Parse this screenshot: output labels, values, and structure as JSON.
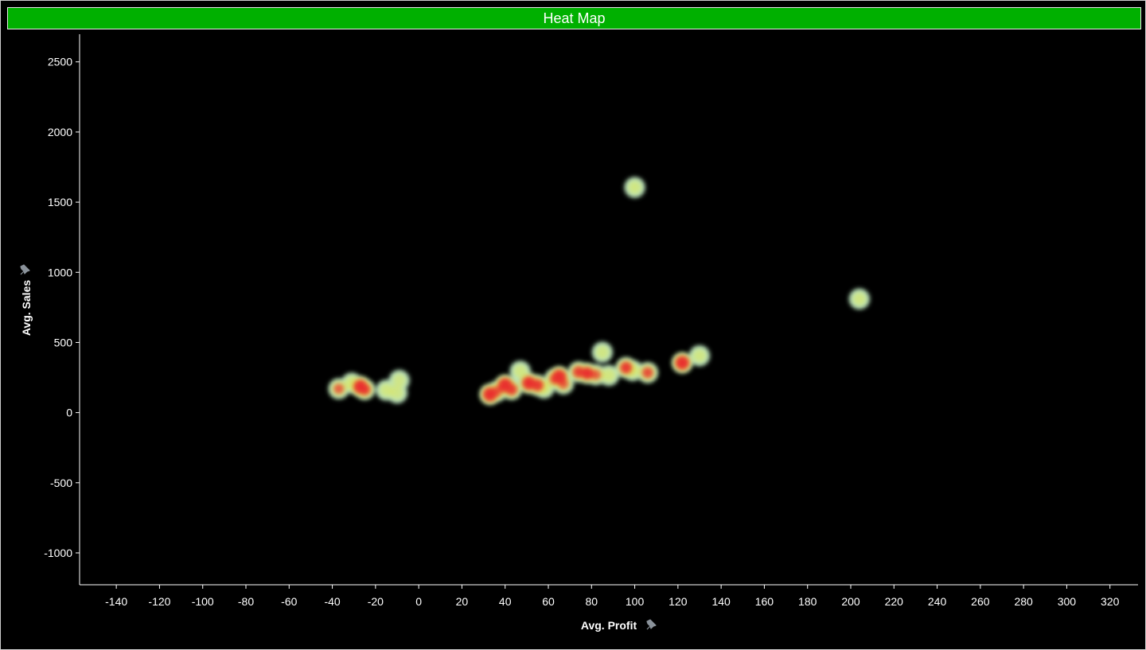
{
  "title": "Heat Map",
  "colors": {
    "title_bar": "#00b000",
    "background": "#000000",
    "axis": "#ffffff",
    "heat_low": "#b7e3c8",
    "heat_mid": "#e6e84a",
    "heat_high": "#e8322e",
    "pin_icon": "#8a929a"
  },
  "icons": {
    "x_axis_pin": "pin-icon",
    "y_axis_pin": "pin-icon"
  },
  "chart_data": {
    "type": "heatmap",
    "title": "Heat Map",
    "xlabel": "Avg. Profit",
    "ylabel": "Avg. Sales",
    "xlim": [
      -157,
      333
    ],
    "ylim": [
      -1227,
      2697
    ],
    "x_ticks": [
      -140,
      -120,
      -100,
      -80,
      -60,
      -40,
      -20,
      0,
      20,
      40,
      60,
      80,
      100,
      120,
      140,
      160,
      180,
      200,
      220,
      240,
      260,
      280,
      300,
      320
    ],
    "y_ticks": [
      2500,
      2000,
      1500,
      1000,
      500,
      0,
      -500,
      -1000
    ],
    "grid": false,
    "points": [
      {
        "x": -37,
        "y": 170,
        "intensity": 0.55
      },
      {
        "x": -31,
        "y": 210,
        "intensity": 0.45
      },
      {
        "x": -27,
        "y": 185,
        "intensity": 0.95
      },
      {
        "x": -25,
        "y": 165,
        "intensity": 0.7
      },
      {
        "x": -15,
        "y": 160,
        "intensity": 0.35
      },
      {
        "x": -10,
        "y": 140,
        "intensity": 0.3
      },
      {
        "x": -9,
        "y": 230,
        "intensity": 0.3
      },
      {
        "x": 33,
        "y": 130,
        "intensity": 0.95
      },
      {
        "x": 36,
        "y": 150,
        "intensity": 0.6
      },
      {
        "x": 40,
        "y": 195,
        "intensity": 1.0
      },
      {
        "x": 43,
        "y": 165,
        "intensity": 0.7
      },
      {
        "x": 47,
        "y": 295,
        "intensity": 0.35
      },
      {
        "x": 51,
        "y": 210,
        "intensity": 0.9
      },
      {
        "x": 55,
        "y": 195,
        "intensity": 0.75
      },
      {
        "x": 58,
        "y": 175,
        "intensity": 0.45
      },
      {
        "x": 63,
        "y": 240,
        "intensity": 0.6
      },
      {
        "x": 65,
        "y": 255,
        "intensity": 1.0
      },
      {
        "x": 67,
        "y": 205,
        "intensity": 0.55
      },
      {
        "x": 74,
        "y": 290,
        "intensity": 0.7
      },
      {
        "x": 78,
        "y": 280,
        "intensity": 0.8
      },
      {
        "x": 82,
        "y": 270,
        "intensity": 0.55
      },
      {
        "x": 85,
        "y": 430,
        "intensity": 0.35
      },
      {
        "x": 88,
        "y": 265,
        "intensity": 0.4
      },
      {
        "x": 96,
        "y": 320,
        "intensity": 0.75
      },
      {
        "x": 99,
        "y": 300,
        "intensity": 0.45
      },
      {
        "x": 100,
        "y": 1605,
        "intensity": 0.35
      },
      {
        "x": 106,
        "y": 285,
        "intensity": 0.65
      },
      {
        "x": 122,
        "y": 355,
        "intensity": 0.95
      },
      {
        "x": 130,
        "y": 405,
        "intensity": 0.35
      },
      {
        "x": 204,
        "y": 810,
        "intensity": 0.35
      }
    ]
  }
}
